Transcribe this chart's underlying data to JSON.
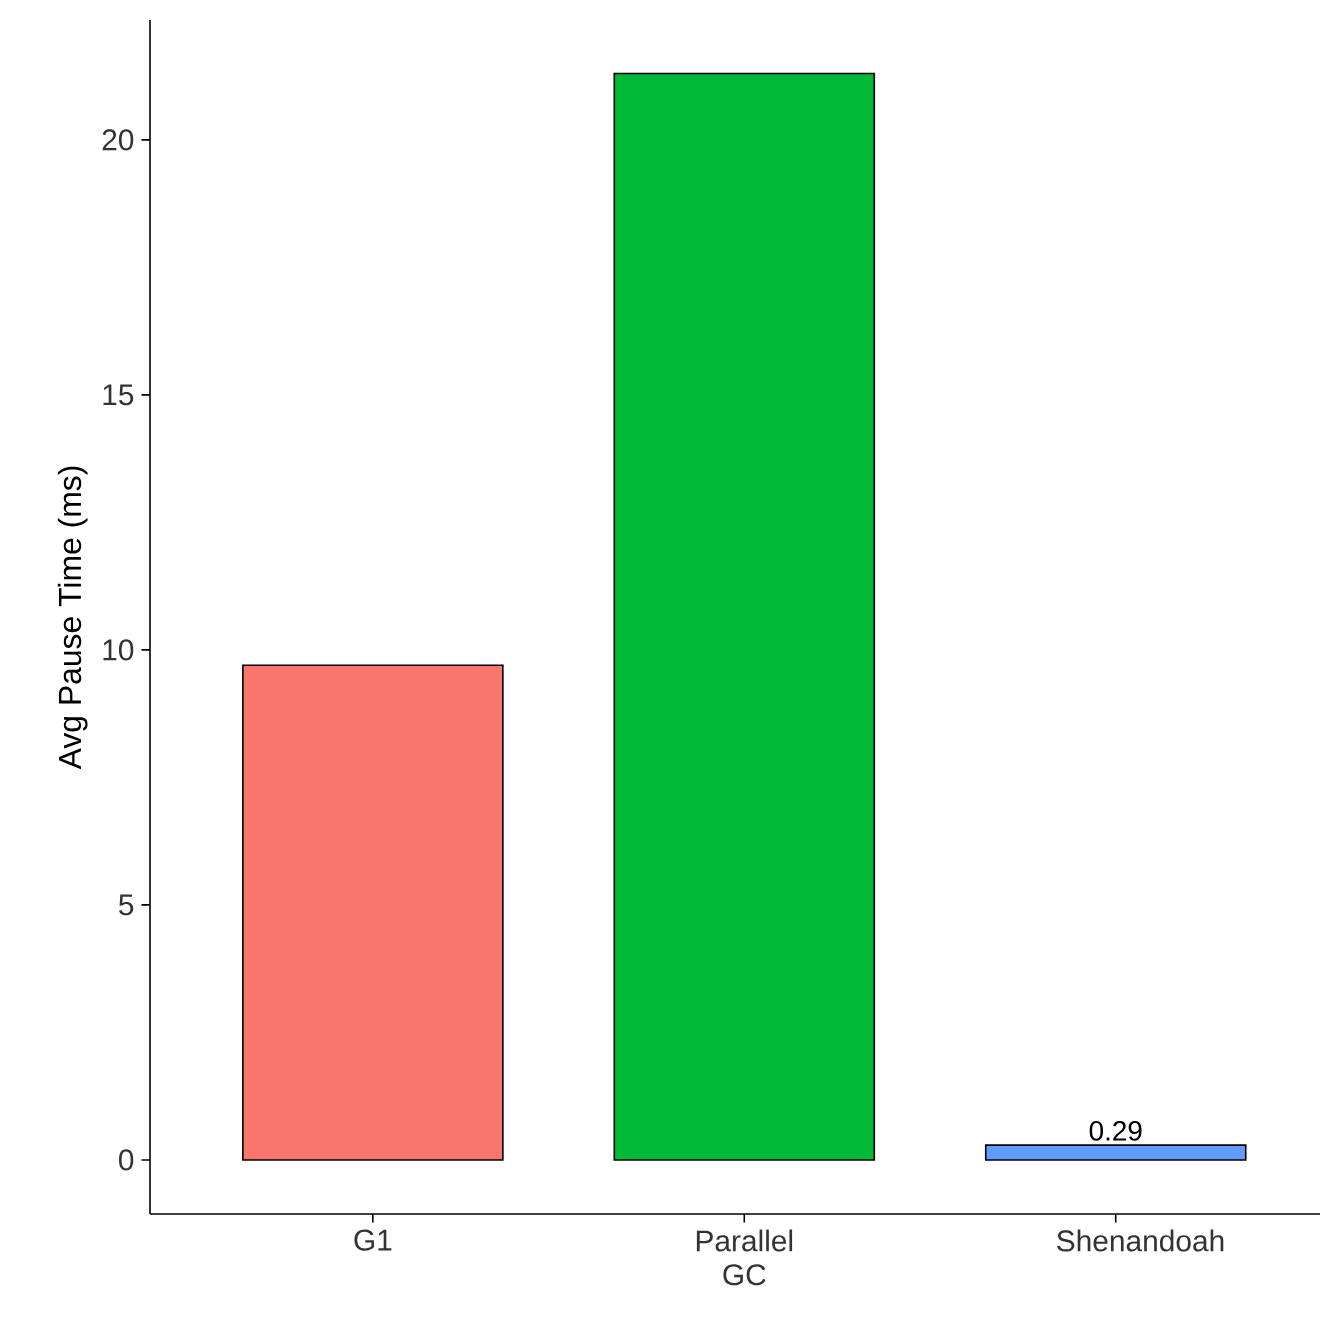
{
  "chart_data": {
    "type": "bar",
    "ylabel": "Avg Pause Time (ms)",
    "categories": [
      "G1",
      "Parallel GC",
      "Shenandoah"
    ],
    "values": [
      9.7,
      21.3,
      0.29
    ],
    "value_labels": [
      null,
      null,
      "0.29"
    ],
    "colors": [
      "#f8766d",
      "#00ba38",
      "#619cff"
    ],
    "ylim": [
      -1.06,
      22.35
    ],
    "yticks": [
      0,
      5,
      10,
      15,
      20
    ],
    "grid": false
  }
}
